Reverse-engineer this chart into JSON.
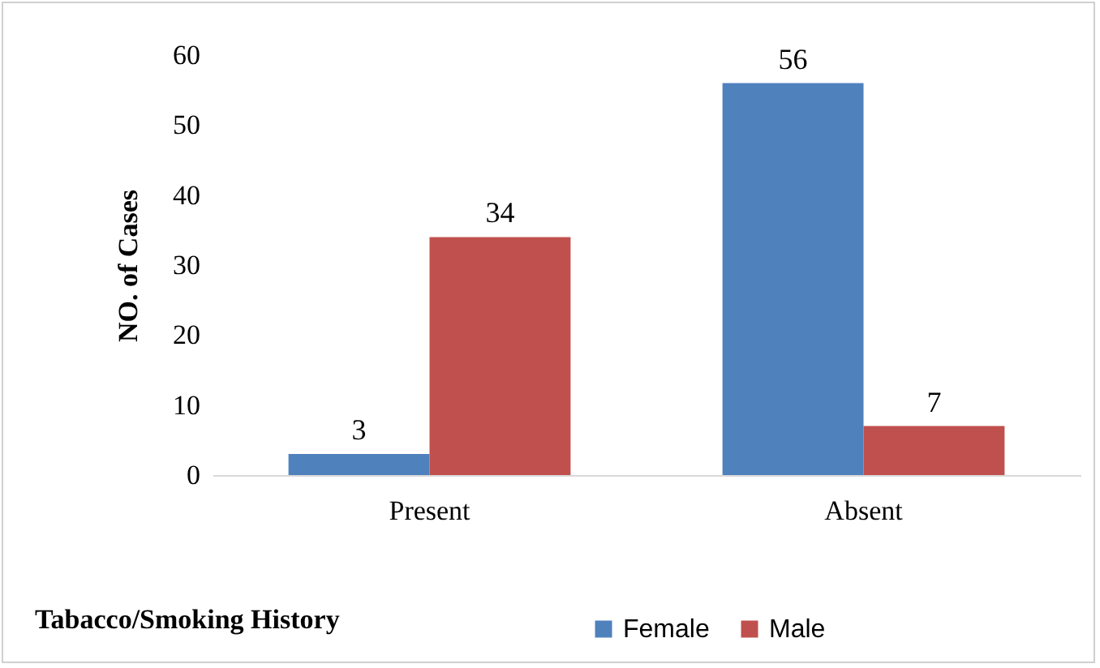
{
  "chart_data": {
    "type": "bar",
    "xlabel": "Tabacco/Smoking History",
    "ylabel": "NO. of Cases",
    "categories": [
      "Present",
      "Absent"
    ],
    "series": [
      {
        "name": "Female",
        "color": "#4f81bd",
        "values": [
          3,
          56
        ]
      },
      {
        "name": "Male",
        "color": "#c0504d",
        "values": [
          34,
          7
        ]
      }
    ],
    "ylim": [
      0,
      60
    ],
    "yticks": [
      0,
      10,
      20,
      30,
      40,
      50,
      60
    ],
    "data_labels": true,
    "legend": "bottom"
  }
}
